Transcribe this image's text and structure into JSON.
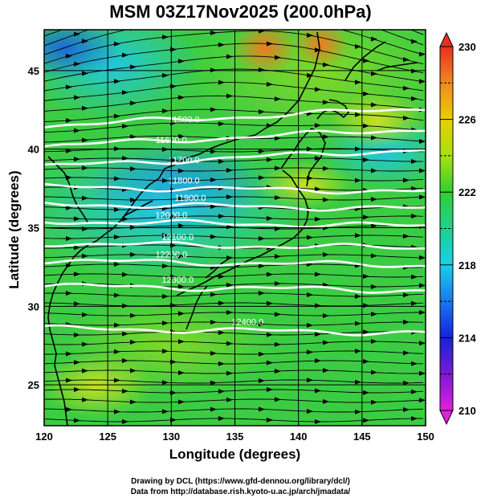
{
  "chart_data": {
    "type": "heatmap",
    "title": "MSM 03Z17Nov2025 (200.0hPa)",
    "xlabel": "Longitude (degrees)",
    "ylabel": "Latitude  (degrees)",
    "xlim": [
      120,
      150
    ],
    "ylim": [
      22.4,
      47.6
    ],
    "x_ticks": [
      120,
      125,
      130,
      135,
      140,
      145,
      150
    ],
    "y_ticks": [
      25,
      30,
      35,
      40,
      45
    ],
    "colorbar": {
      "min": 210,
      "max": 230,
      "labels": [
        210,
        214,
        218,
        222,
        226,
        230
      ],
      "stops": [
        "#e020e0",
        "#7a1ad0",
        "#1424d8",
        "#1a78f0",
        "#18d0e8",
        "#20d070",
        "#40d020",
        "#a8e010",
        "#e8d000",
        "#f09020",
        "#e83020"
      ]
    },
    "field": "temperature (K) shaded, geopotential height contours, wind streamlines",
    "contours": [
      {
        "label": "11500.0",
        "lat": 41.5
      },
      {
        "label": "11600.0",
        "lat": 40.2
      },
      {
        "label": "11700.0",
        "lat": 38.9
      },
      {
        "label": "11800.0",
        "lat": 37.6
      },
      {
        "label": "11900.0",
        "lat": 36.5
      },
      {
        "label": "12000.0",
        "lat": 35.4
      },
      {
        "label": "12100.0",
        "lat": 34.0
      },
      {
        "label": "12200.0",
        "lat": 32.9
      },
      {
        "label": "12300.0",
        "lat": 31.3
      },
      {
        "label": "12400.0",
        "lat": 28.6
      }
    ]
  },
  "credits": {
    "line1": "Drawing by DCL (https://www.gfd-dennou.org/library/dcl/)",
    "line2": "Data from http://database.rish.kyoto-u.ac.jp/arch/jmadata/"
  }
}
